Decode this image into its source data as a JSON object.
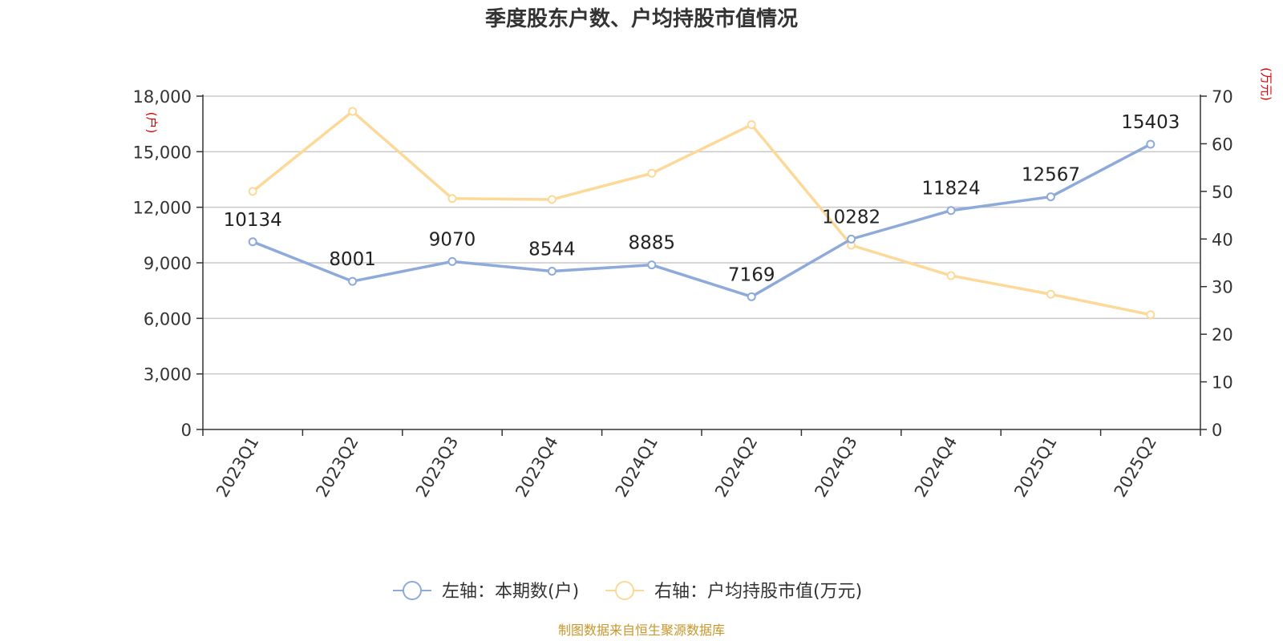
{
  "chart_data": {
    "type": "line",
    "title": "季度股东户数、户均持股市值情况",
    "categories": [
      "2023Q1",
      "2023Q2",
      "2023Q3",
      "2023Q4",
      "2024Q1",
      "2024Q2",
      "2024Q3",
      "2024Q4",
      "2025Q1",
      "2025Q2"
    ],
    "left_axis": {
      "unit": "(户)",
      "min": 0,
      "max": 18000,
      "ticks": [
        "0",
        "3,000",
        "6,000",
        "9,000",
        "12,000",
        "15,000",
        "18,000"
      ]
    },
    "right_axis": {
      "unit": "(万元)",
      "min": 0,
      "max": 70,
      "ticks": [
        "0",
        "10",
        "20",
        "30",
        "40",
        "50",
        "60",
        "70"
      ]
    },
    "series": [
      {
        "name": "左轴：本期数(户)",
        "axis": "left",
        "color": "#8eaadb",
        "values": [
          10134,
          8001,
          9070,
          8544,
          8885,
          7169,
          10282,
          11824,
          12567,
          15403
        ],
        "labels": [
          "10134",
          "8001",
          "9070",
          "8544",
          "8885",
          "7169",
          "10282",
          "11824",
          "12567",
          "15403"
        ]
      },
      {
        "name": "右轴：户均持股市值(万元)",
        "axis": "right",
        "color": "#fcd998",
        "values": [
          50.0,
          66.8,
          48.5,
          48.3,
          53.8,
          64.0,
          38.7,
          32.3,
          28.4,
          24.1
        ]
      }
    ],
    "grid": true,
    "legend_position": "bottom"
  },
  "source": "制图数据来自恒生聚源数据库"
}
